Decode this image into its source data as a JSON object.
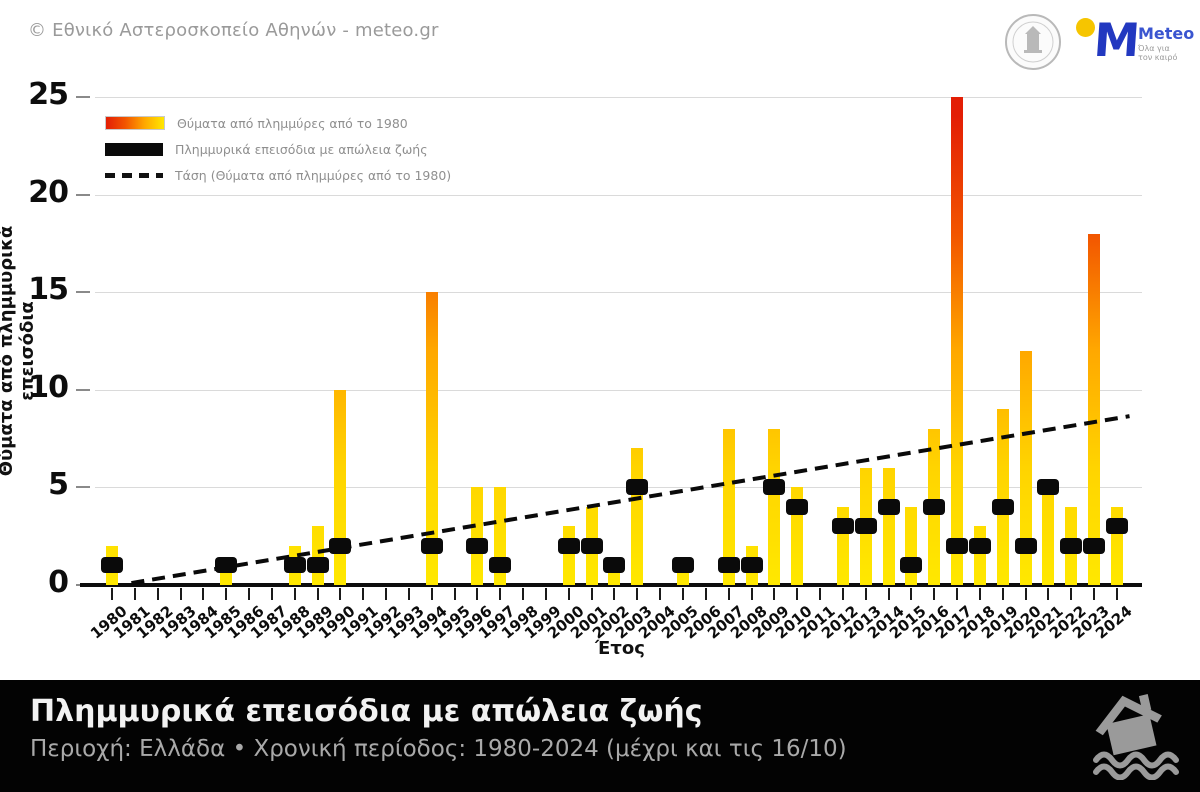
{
  "header": {
    "copyright": "© Εθνικό Αστεροσκοπείο Αθηνών - meteo.gr",
    "meteo_logo": {
      "monogram": "M",
      "label": "Meteo",
      "tagline_line1": "Όλα για",
      "tagline_line2": "τον καιρό"
    }
  },
  "chart_data": {
    "type": "bar",
    "xlabel": "Έτος",
    "ylabel": "Θύματα από πλημμυρικά επεισόδια",
    "ylim": [
      0,
      25
    ],
    "yticks": [
      0,
      5,
      10,
      15,
      20,
      25
    ],
    "grid": "horizontal",
    "legend_position": "top-left",
    "categories": [
      1980,
      1981,
      1982,
      1983,
      1984,
      1985,
      1986,
      1987,
      1988,
      1989,
      1990,
      1991,
      1992,
      1993,
      1994,
      1995,
      1996,
      1997,
      1998,
      1999,
      2000,
      2001,
      2002,
      2003,
      2004,
      2005,
      2006,
      2007,
      2008,
      2009,
      2010,
      2011,
      2012,
      2013,
      2014,
      2015,
      2016,
      2017,
      2018,
      2019,
      2020,
      2021,
      2022,
      2023,
      2024
    ],
    "series": [
      {
        "name": "Θύματα από πλημμύρες από το 1980",
        "type": "gradient-bar",
        "values": [
          2,
          0,
          0,
          0,
          0,
          1,
          0,
          0,
          2,
          3,
          10,
          0,
          0,
          0,
          15,
          0,
          5,
          5,
          0,
          0,
          3,
          4,
          1,
          7,
          0,
          1,
          0,
          8,
          2,
          8,
          5,
          0,
          4,
          6,
          6,
          4,
          8,
          25,
          3,
          9,
          12,
          5,
          4,
          18,
          4
        ]
      },
      {
        "name": "Πλημμυρικά επεισόδια με απώλεια ζωής",
        "type": "black-square-marker",
        "values": [
          1,
          0,
          0,
          0,
          0,
          1,
          0,
          0,
          1,
          1,
          2,
          0,
          0,
          0,
          2,
          0,
          2,
          1,
          0,
          0,
          2,
          2,
          1,
          5,
          0,
          1,
          0,
          1,
          1,
          5,
          4,
          0,
          3,
          3,
          4,
          1,
          4,
          2,
          2,
          4,
          2,
          5,
          2,
          2,
          3
        ]
      },
      {
        "name": "Τάση (Θύματα από πλημμύρες από το 1980)",
        "type": "dashed-trend-line",
        "from": {
          "year": 1980.85,
          "value": 0.1
        },
        "to": {
          "year": 2024.55,
          "value": 8.65
        }
      }
    ]
  },
  "colors": {
    "bar_bottom": "#ffe800",
    "bar_mid": "#ffa800",
    "bar_top": "#e31e05",
    "marker": "#0a0a0a",
    "gridline": "#dadada",
    "axis": "#0d0d0d",
    "legend_text": "#8f8f8f",
    "footer_bg": "#030303"
  },
  "footer": {
    "title": "Πλημμυρικά επεισόδια με απώλεια ζωής",
    "subtitle": "Περιοχή: Ελλάδα • Χρονική περίοδος: 1980-2024 (μέχρι και τις 16/10)"
  }
}
